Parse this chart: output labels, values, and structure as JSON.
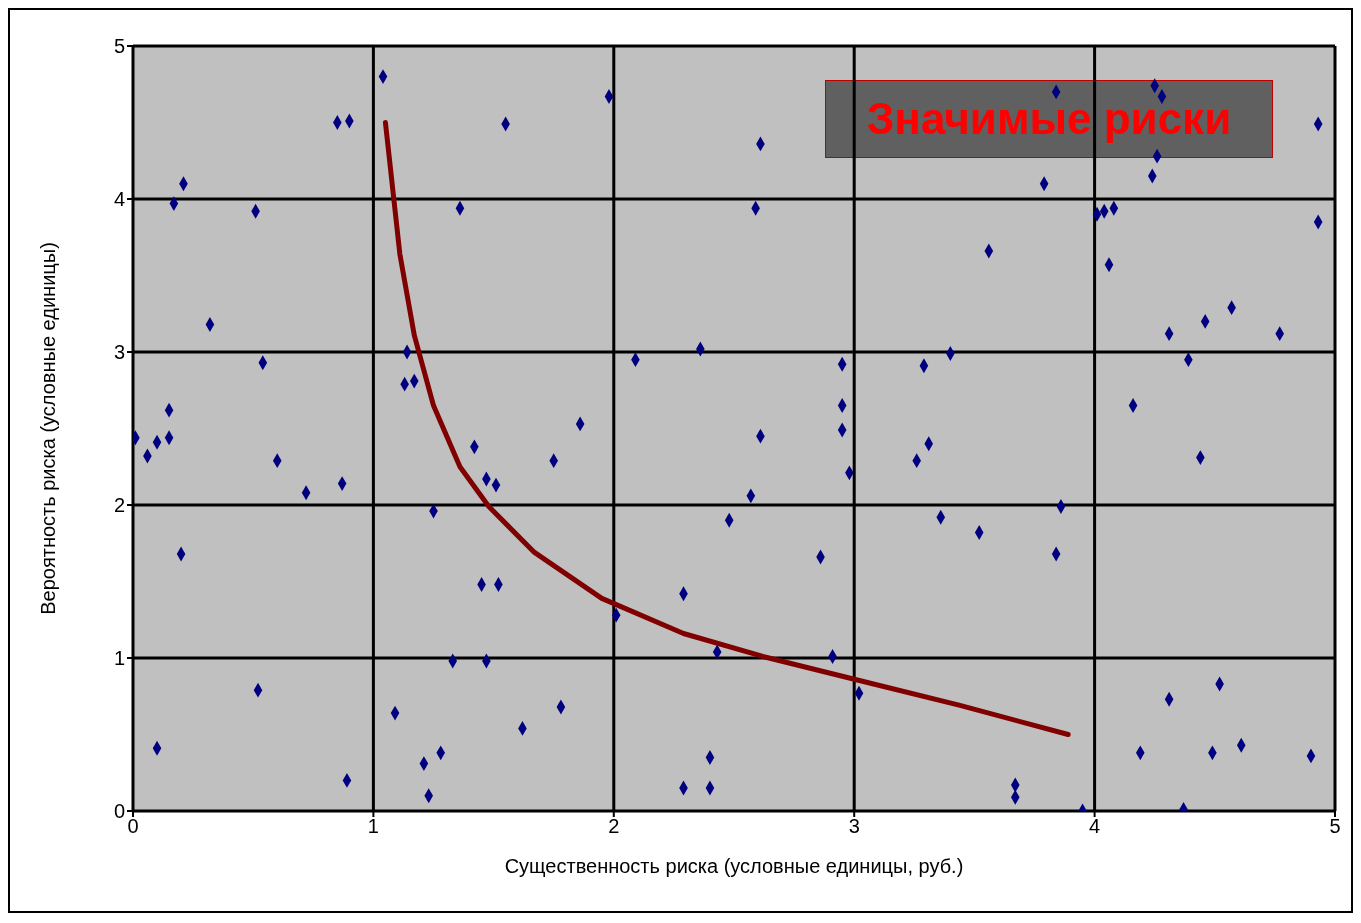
{
  "chart_data": {
    "type": "scatter",
    "xlabel": "Существенность риска (условные единицы,  руб.)",
    "ylabel": "Вероятность риска (условные единицы)",
    "xlim": [
      0,
      5
    ],
    "ylim": [
      0,
      5
    ],
    "xticks": [
      0,
      1,
      2,
      3,
      4,
      5
    ],
    "yticks": [
      0,
      1,
      2,
      3,
      4,
      5
    ],
    "grid": true,
    "legend": false,
    "annotations": [
      "Значимые риски"
    ],
    "series": [
      {
        "marker": "diamond",
        "color": "#000080",
        "x": [
          0.01,
          0.06,
          0.1,
          0.15,
          0.15,
          0.17,
          0.21,
          0.2,
          0.1,
          0.32,
          0.51,
          0.54,
          0.6,
          0.52,
          0.72,
          0.85,
          0.9,
          0.87,
          0.89,
          1.04,
          1.14,
          1.13,
          1.17,
          1.09,
          1.21,
          1.23,
          1.25,
          1.28,
          1.36,
          1.33,
          1.42,
          1.47,
          1.51,
          1.45,
          1.52,
          1.47,
          1.55,
          1.62,
          1.75,
          1.86,
          1.78,
          1.98,
          2.01,
          2.09,
          2.36,
          2.29,
          2.29,
          2.4,
          2.4,
          2.43,
          2.48,
          2.57,
          2.59,
          2.61,
          2.61,
          2.86,
          2.91,
          2.95,
          2.95,
          2.95,
          2.98,
          3.02,
          3.26,
          3.29,
          3.31,
          3.4,
          3.36,
          3.52,
          3.56,
          3.67,
          3.67,
          3.79,
          3.84,
          3.86,
          3.84,
          3.95,
          4.01,
          4.04,
          4.08,
          4.06,
          4.16,
          4.19,
          4.25,
          4.28,
          4.26,
          4.24,
          4.31,
          4.31,
          4.39,
          4.46,
          4.57,
          4.44,
          4.49,
          4.52,
          4.37,
          4.61,
          4.77,
          4.93,
          4.93,
          4.9
        ],
        "values": [
          2.44,
          2.32,
          2.41,
          2.44,
          2.62,
          3.97,
          4.1,
          1.68,
          0.41,
          3.18,
          3.92,
          2.93,
          2.29,
          0.79,
          2.08,
          4.5,
          4.51,
          2.14,
          0.2,
          4.8,
          3.0,
          2.79,
          2.81,
          0.64,
          0.31,
          0.1,
          1.96,
          0.38,
          3.94,
          0.98,
          2.38,
          2.17,
          2.13,
          1.48,
          1.48,
          0.98,
          4.49,
          0.54,
          2.29,
          2.53,
          0.68,
          4.67,
          1.28,
          2.95,
          3.02,
          1.42,
          0.15,
          0.35,
          0.15,
          1.04,
          1.9,
          2.06,
          3.94,
          4.36,
          2.45,
          1.66,
          1.01,
          2.92,
          2.65,
          2.49,
          2.21,
          0.77,
          2.29,
          2.91,
          2.4,
          2.99,
          1.92,
          1.82,
          3.66,
          0.17,
          0.09,
          4.1,
          4.7,
          1.99,
          1.68,
          0.0,
          3.9,
          3.92,
          3.94,
          3.57,
          2.65,
          0.38,
          4.74,
          4.67,
          4.28,
          4.15,
          3.12,
          0.73,
          2.95,
          3.2,
          3.29,
          2.31,
          0.38,
          0.83,
          0.01,
          0.43,
          3.12,
          4.49,
          3.85,
          0.36
        ]
      },
      {
        "type": "line",
        "color": "#800000",
        "x": [
          1.05,
          1.11,
          1.17,
          1.25,
          1.36,
          1.48,
          1.67,
          1.95,
          2.29,
          2.62,
          3.03,
          3.44,
          3.89
        ],
        "values": [
          4.5,
          3.64,
          3.11,
          2.65,
          2.25,
          1.99,
          1.69,
          1.39,
          1.16,
          1.01,
          0.85,
          0.69,
          0.5
        ]
      }
    ]
  }
}
